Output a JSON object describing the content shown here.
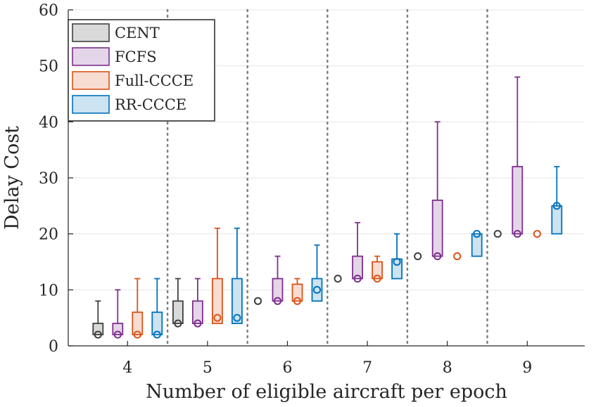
{
  "chart_data": {
    "type": "boxplot",
    "title": "",
    "xlabel": "Number of eligible aircraft per epoch",
    "ylabel": "Delay Cost",
    "ylim": [
      0,
      60
    ],
    "yticks": [
      0,
      10,
      20,
      30,
      40,
      50,
      60
    ],
    "categories": [
      4,
      5,
      6,
      7,
      8,
      9
    ],
    "legend_position": "top-left",
    "grid": true,
    "series": [
      {
        "name": "CENT",
        "color": "#404040",
        "fill": "#d9d9d9",
        "boxes": [
          {
            "min": 2,
            "q1": 2,
            "median": 2,
            "q3": 4,
            "max": 8
          },
          {
            "min": 4,
            "q1": 4,
            "median": 4,
            "q3": 8,
            "max": 12
          },
          {
            "min": 8,
            "q1": 8,
            "median": 8,
            "q3": 8,
            "max": 8
          },
          {
            "min": 12,
            "q1": 12,
            "median": 12,
            "q3": 12,
            "max": 12
          },
          {
            "min": 16,
            "q1": 16,
            "median": 16,
            "q3": 16,
            "max": 16
          },
          {
            "min": 20,
            "q1": 20,
            "median": 20,
            "q3": 20,
            "max": 20
          }
        ]
      },
      {
        "name": "FCFS",
        "color": "#7e2f8e",
        "fill": "#e5d5e8",
        "boxes": [
          {
            "min": 2,
            "q1": 2,
            "median": 2,
            "q3": 4,
            "max": 10
          },
          {
            "min": 4,
            "q1": 4,
            "median": 4,
            "q3": 8,
            "max": 12
          },
          {
            "min": 8,
            "q1": 8,
            "median": 8,
            "q3": 12,
            "max": 16
          },
          {
            "min": 12,
            "q1": 12,
            "median": 12,
            "q3": 16,
            "max": 22
          },
          {
            "min": 16,
            "q1": 16,
            "median": 16,
            "q3": 26,
            "max": 40
          },
          {
            "min": 20,
            "q1": 20,
            "median": 20,
            "q3": 32,
            "max": 48
          }
        ]
      },
      {
        "name": "Full-CCCE",
        "color": "#d95319",
        "fill": "#f7dcd1",
        "boxes": [
          {
            "min": 2,
            "q1": 2,
            "median": 2,
            "q3": 6,
            "max": 12
          },
          {
            "min": 4,
            "q1": 4,
            "median": 5,
            "q3": 12,
            "max": 21
          },
          {
            "min": 8,
            "q1": 8,
            "median": 8,
            "q3": 11,
            "max": 12
          },
          {
            "min": 12,
            "q1": 12,
            "median": 12,
            "q3": 15,
            "max": 16
          },
          {
            "min": 16,
            "q1": 16,
            "median": 16,
            "q3": 16,
            "max": 16
          },
          {
            "min": 20,
            "q1": 20,
            "median": 20,
            "q3": 20,
            "max": 20
          }
        ]
      },
      {
        "name": "RR-CCCE",
        "color": "#0072bd",
        "fill": "#cce3f2",
        "boxes": [
          {
            "min": 2,
            "q1": 2,
            "median": 2,
            "q3": 6,
            "max": 12
          },
          {
            "min": 4,
            "q1": 4,
            "median": 5,
            "q3": 12,
            "max": 21
          },
          {
            "min": 8,
            "q1": 8,
            "median": 10,
            "q3": 12,
            "max": 18
          },
          {
            "min": 12,
            "q1": 12,
            "median": 15,
            "q3": 15.5,
            "max": 20
          },
          {
            "min": 16,
            "q1": 16,
            "median": 20,
            "q3": 20,
            "max": 20
          },
          {
            "min": 20,
            "q1": 20,
            "median": 25,
            "q3": 25,
            "max": 32
          }
        ]
      }
    ]
  }
}
